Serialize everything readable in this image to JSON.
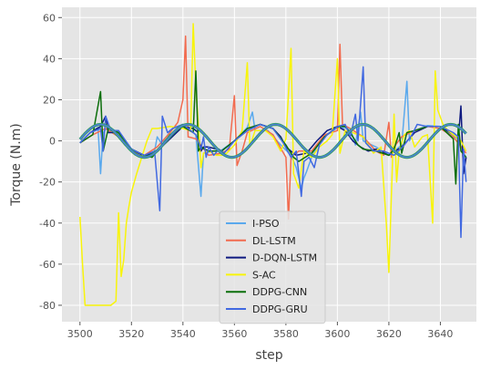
{
  "chart_data": {
    "type": "line",
    "xlabel": "step",
    "ylabel": "Torque (N.m)",
    "xlim": [
      3493,
      3654
    ],
    "ylim": [
      -88,
      65
    ],
    "x_ticks": [
      3500,
      3520,
      3540,
      3560,
      3580,
      3600,
      3620,
      3640
    ],
    "y_ticks": [
      -80,
      -60,
      -40,
      -20,
      0,
      20,
      40,
      60
    ],
    "grid": true,
    "background": "#e5e5e5",
    "legend_position": "lower-center",
    "sine_reference": {
      "amplitude": 8,
      "period": 34,
      "phase_x": 3499.5,
      "x_start": 3500,
      "x_end": 3650
    },
    "series": [
      {
        "name": "I-PSO",
        "color": "#5aa9ed",
        "points": [
          [
            3500,
            -1
          ],
          [
            3504,
            4
          ],
          [
            3507,
            6.5
          ],
          [
            3508,
            -16
          ],
          [
            3509,
            4
          ],
          [
            3511,
            7
          ],
          [
            3515,
            4
          ],
          [
            3520,
            -4
          ],
          [
            3525,
            -7.5
          ],
          [
            3529,
            -5
          ],
          [
            3530,
            2
          ],
          [
            3532,
            -2
          ],
          [
            3533,
            1
          ],
          [
            3536,
            6
          ],
          [
            3540,
            8
          ],
          [
            3545,
            3
          ],
          [
            3547,
            -27
          ],
          [
            3548,
            -6
          ],
          [
            3552,
            -5
          ],
          [
            3555,
            -4.5
          ],
          [
            3560,
            0
          ],
          [
            3565,
            6.5
          ],
          [
            3567,
            14
          ],
          [
            3568,
            5
          ],
          [
            3573,
            5
          ],
          [
            3578,
            -2
          ],
          [
            3582,
            -7
          ],
          [
            3584,
            -13
          ],
          [
            3586,
            -23
          ],
          [
            3587,
            -18
          ],
          [
            3588,
            -15
          ],
          [
            3590,
            -8
          ],
          [
            3592,
            -3
          ],
          [
            3595,
            2
          ],
          [
            3600,
            6.5
          ],
          [
            3605,
            6
          ],
          [
            3607,
            -2
          ],
          [
            3609,
            14
          ],
          [
            3610,
            0
          ],
          [
            3615,
            -3
          ],
          [
            3620,
            -7
          ],
          [
            3625,
            -2
          ],
          [
            3627,
            29
          ],
          [
            3628,
            0
          ],
          [
            3630,
            5
          ],
          [
            3635,
            7.5
          ],
          [
            3640,
            7
          ],
          [
            3644,
            3
          ],
          [
            3647,
            1
          ],
          [
            3648,
            -4
          ],
          [
            3650,
            -8
          ]
        ]
      },
      {
        "name": "DL-LSTM",
        "color": "#f26b4f",
        "points": [
          [
            3500,
            -1
          ],
          [
            3505,
            3
          ],
          [
            3510,
            6
          ],
          [
            3515,
            2
          ],
          [
            3520,
            -5
          ],
          [
            3525,
            -7
          ],
          [
            3530,
            -3
          ],
          [
            3535,
            4
          ],
          [
            3538,
            9
          ],
          [
            3540,
            20
          ],
          [
            3541,
            51
          ],
          [
            3542,
            2
          ],
          [
            3545,
            1
          ],
          [
            3550,
            -7
          ],
          [
            3555,
            -6
          ],
          [
            3558,
            -4
          ],
          [
            3560,
            22
          ],
          [
            3561,
            -12
          ],
          [
            3563,
            -5
          ],
          [
            3565,
            4
          ],
          [
            3570,
            7
          ],
          [
            3575,
            3
          ],
          [
            3580,
            -8
          ],
          [
            3581,
            -38
          ],
          [
            3582,
            -8
          ],
          [
            3585,
            -5
          ],
          [
            3590,
            -5
          ],
          [
            3595,
            3
          ],
          [
            3600,
            5
          ],
          [
            3601,
            47
          ],
          [
            3602,
            8
          ],
          [
            3605,
            6
          ],
          [
            3610,
            2
          ],
          [
            3615,
            -5
          ],
          [
            3618,
            -7
          ],
          [
            3620,
            9
          ],
          [
            3621,
            -8
          ],
          [
            3622,
            -3
          ],
          [
            3625,
            2
          ],
          [
            3630,
            5
          ],
          [
            3635,
            7
          ],
          [
            3640,
            6
          ],
          [
            3645,
            2
          ],
          [
            3650,
            -6
          ]
        ]
      },
      {
        "name": "D-DQN-LSTM",
        "color": "#0f1a80",
        "points": [
          [
            3500,
            -1
          ],
          [
            3504,
            4
          ],
          [
            3508,
            7
          ],
          [
            3510,
            12
          ],
          [
            3511,
            4
          ],
          [
            3515,
            4
          ],
          [
            3520,
            -4
          ],
          [
            3525,
            -7.5
          ],
          [
            3530,
            -5
          ],
          [
            3535,
            1
          ],
          [
            3540,
            7
          ],
          [
            3544,
            6
          ],
          [
            3546,
            4
          ],
          [
            3547,
            -5
          ],
          [
            3548,
            -3
          ],
          [
            3550,
            -3
          ],
          [
            3553,
            -4
          ],
          [
            3555,
            -5
          ],
          [
            3560,
            0
          ],
          [
            3565,
            5
          ],
          [
            3570,
            8
          ],
          [
            3575,
            6
          ],
          [
            3578,
            2
          ],
          [
            3580,
            -3
          ],
          [
            3584,
            -7
          ],
          [
            3588,
            -6
          ],
          [
            3592,
            0
          ],
          [
            3596,
            5
          ],
          [
            3600,
            7
          ],
          [
            3603,
            5
          ],
          [
            3606,
            0
          ],
          [
            3609,
            -3
          ],
          [
            3612,
            -5
          ],
          [
            3615,
            -4
          ],
          [
            3620,
            -7
          ],
          [
            3625,
            -3
          ],
          [
            3630,
            4
          ],
          [
            3635,
            7
          ],
          [
            3640,
            7
          ],
          [
            3645,
            3
          ],
          [
            3647,
            1
          ],
          [
            3648,
            17
          ],
          [
            3649,
            -16
          ],
          [
            3650,
            -8
          ]
        ]
      },
      {
        "name": "S-AC",
        "color": "#f8f40a",
        "points": [
          [
            3500,
            -37
          ],
          [
            3501,
            -60
          ],
          [
            3502,
            -80
          ],
          [
            3505,
            -80
          ],
          [
            3508,
            -80
          ],
          [
            3512,
            -80
          ],
          [
            3514,
            -78
          ],
          [
            3515,
            -35
          ],
          [
            3516,
            -66
          ],
          [
            3517,
            -58
          ],
          [
            3518,
            -40
          ],
          [
            3519,
            -32
          ],
          [
            3520,
            -25
          ],
          [
            3522,
            -16
          ],
          [
            3524,
            -8
          ],
          [
            3526,
            0
          ],
          [
            3528,
            6
          ],
          [
            3530,
            6
          ],
          [
            3535,
            7
          ],
          [
            3540,
            6
          ],
          [
            3543,
            5
          ],
          [
            3544,
            57
          ],
          [
            3545,
            26
          ],
          [
            3546,
            8
          ],
          [
            3547,
            -13
          ],
          [
            3548,
            -6
          ],
          [
            3550,
            -5
          ],
          [
            3553,
            -7
          ],
          [
            3555,
            -7
          ],
          [
            3557,
            -6
          ],
          [
            3560,
            -2
          ],
          [
            3563,
            5
          ],
          [
            3565,
            38
          ],
          [
            3566,
            -3
          ],
          [
            3568,
            5
          ],
          [
            3572,
            5
          ],
          [
            3575,
            2
          ],
          [
            3578,
            -5
          ],
          [
            3580,
            1
          ],
          [
            3582,
            45
          ],
          [
            3583,
            -16
          ],
          [
            3585,
            -23
          ],
          [
            3587,
            -5
          ],
          [
            3590,
            -8
          ],
          [
            3593,
            -3
          ],
          [
            3596,
            0
          ],
          [
            3598,
            3
          ],
          [
            3600,
            40
          ],
          [
            3601,
            -6
          ],
          [
            3603,
            5
          ],
          [
            3606,
            4
          ],
          [
            3610,
            2
          ],
          [
            3614,
            -6
          ],
          [
            3617,
            -3
          ],
          [
            3619,
            -40
          ],
          [
            3620,
            -64
          ],
          [
            3622,
            13
          ],
          [
            3623,
            -20
          ],
          [
            3624,
            -5
          ],
          [
            3626,
            3
          ],
          [
            3628,
            5
          ],
          [
            3630,
            -3
          ],
          [
            3633,
            2
          ],
          [
            3635,
            3
          ],
          [
            3637,
            -40
          ],
          [
            3638,
            34
          ],
          [
            3639,
            15
          ],
          [
            3641,
            8
          ],
          [
            3643,
            5
          ],
          [
            3645,
            3
          ],
          [
            3648,
            0
          ],
          [
            3650,
            -5
          ]
        ]
      },
      {
        "name": "DDPG-CNN",
        "color": "#0b6e0b",
        "points": [
          [
            3500,
            -1
          ],
          [
            3505,
            3
          ],
          [
            3508,
            24
          ],
          [
            3509,
            -5
          ],
          [
            3511,
            6
          ],
          [
            3515,
            4
          ],
          [
            3520,
            -4
          ],
          [
            3525,
            -7
          ],
          [
            3528,
            -8
          ],
          [
            3530,
            -5
          ],
          [
            3535,
            3
          ],
          [
            3540,
            7
          ],
          [
            3544,
            4
          ],
          [
            3545,
            34
          ],
          [
            3546,
            -5
          ],
          [
            3547,
            -3
          ],
          [
            3550,
            -5
          ],
          [
            3555,
            -5
          ],
          [
            3560,
            0
          ],
          [
            3565,
            6
          ],
          [
            3570,
            8
          ],
          [
            3575,
            6
          ],
          [
            3580,
            -2
          ],
          [
            3583,
            -8
          ],
          [
            3585,
            -10
          ],
          [
            3590,
            -6
          ],
          [
            3595,
            2
          ],
          [
            3600,
            7
          ],
          [
            3603,
            7
          ],
          [
            3605,
            4
          ],
          [
            3608,
            -2
          ],
          [
            3610,
            -4
          ],
          [
            3615,
            -5
          ],
          [
            3620,
            -7
          ],
          [
            3622,
            -4
          ],
          [
            3624,
            4
          ],
          [
            3625,
            -6
          ],
          [
            3627,
            4
          ],
          [
            3630,
            5
          ],
          [
            3635,
            7
          ],
          [
            3640,
            7
          ],
          [
            3645,
            1
          ],
          [
            3646,
            -21
          ],
          [
            3647,
            8
          ],
          [
            3648,
            -5
          ],
          [
            3650,
            -8
          ]
        ]
      },
      {
        "name": "DDPG-GRU",
        "color": "#4169e1",
        "points": [
          [
            3500,
            -1
          ],
          [
            3504,
            4
          ],
          [
            3508,
            6
          ],
          [
            3509,
            -5
          ],
          [
            3510,
            12
          ],
          [
            3512,
            5
          ],
          [
            3515,
            5
          ],
          [
            3520,
            -4
          ],
          [
            3525,
            -7
          ],
          [
            3529,
            -5
          ],
          [
            3531,
            -34
          ],
          [
            3532,
            12
          ],
          [
            3534,
            4
          ],
          [
            3536,
            6
          ],
          [
            3540,
            8
          ],
          [
            3545,
            3
          ],
          [
            3547,
            -4
          ],
          [
            3548,
            2
          ],
          [
            3549,
            -8
          ],
          [
            3550,
            -3
          ],
          [
            3552,
            -7
          ],
          [
            3554,
            -4
          ],
          [
            3556,
            -6
          ],
          [
            3560,
            0
          ],
          [
            3565,
            5
          ],
          [
            3570,
            8
          ],
          [
            3575,
            6
          ],
          [
            3579,
            -1
          ],
          [
            3582,
            -8
          ],
          [
            3584,
            -5
          ],
          [
            3586,
            -27
          ],
          [
            3587,
            -10
          ],
          [
            3589,
            -8
          ],
          [
            3591,
            -13
          ],
          [
            3593,
            -2
          ],
          [
            3596,
            3
          ],
          [
            3600,
            7
          ],
          [
            3603,
            8
          ],
          [
            3605,
            2
          ],
          [
            3607,
            13
          ],
          [
            3608,
            0
          ],
          [
            3610,
            36
          ],
          [
            3611,
            -1
          ],
          [
            3614,
            -5
          ],
          [
            3618,
            -5
          ],
          [
            3622,
            -7
          ],
          [
            3626,
            -2
          ],
          [
            3629,
            3
          ],
          [
            3631,
            8
          ],
          [
            3635,
            7
          ],
          [
            3640,
            7
          ],
          [
            3645,
            4
          ],
          [
            3647,
            2
          ],
          [
            3648,
            -47
          ],
          [
            3649,
            -4
          ],
          [
            3650,
            -20
          ]
        ]
      }
    ]
  }
}
